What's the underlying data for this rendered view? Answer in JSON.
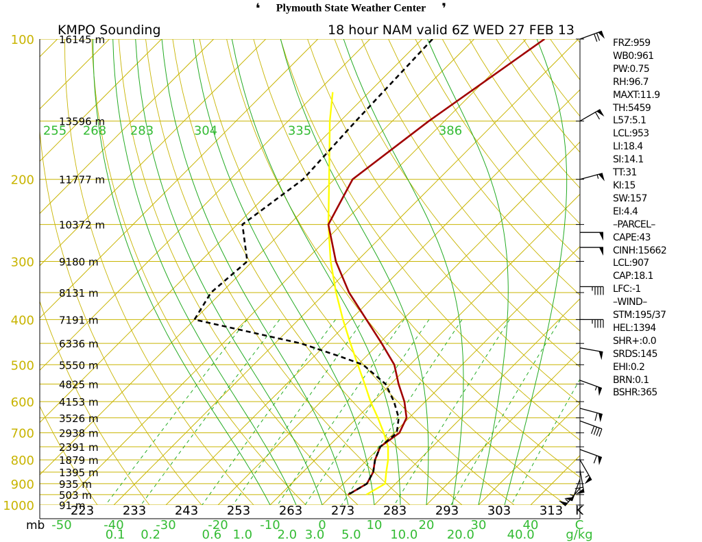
{
  "header": {
    "title": "Plymouth State Weather Center",
    "flag_left": "❛",
    "flag_right": "❜"
  },
  "indices": [
    "FRZ:959",
    "WB0:961",
    "PW:0.75",
    "RH:96.7",
    "MAXT:11.9",
    "TH:5459",
    "L57:5.1",
    "LCL:953",
    "LI:18.4",
    "SI:14.1",
    "TT:31",
    "KI:15",
    "SW:157",
    "EI:4.4",
    "–PARCEL–",
    "CAPE:43",
    "CINH:15662",
    "LCL:907",
    "CAP:18.1",
    "LFC:-1",
    "–WIND–",
    "STM:195/37",
    "HEL:1394",
    "SHR+:0.0",
    "SRDS:145",
    "EHI:0.2",
    "BRN:0.1",
    "BSHR:365"
  ],
  "colors": {
    "isobar": "#c8b400",
    "isotherm": "#c8b400",
    "dry_adiabat": "#c8b400",
    "moist_adiabat": "#22aa22",
    "mixing_ratio": "#22aa22",
    "temperature": "#a00000",
    "dewpoint": "#000000",
    "parcel": "#ffff00",
    "label_green": "#33bb33",
    "label_yellow": "#c8b400",
    "text": "#000000"
  },
  "chart_data": {
    "type": "line",
    "subtype": "skew-T log-P sounding",
    "title": "KMPO Sounding",
    "subtitle": "18 hour NAM valid 6Z WED 27 FEB 13",
    "ylabel": "mb",
    "y_scale": "log",
    "pressure_ticks": [
      100,
      200,
      300,
      400,
      500,
      600,
      700,
      800,
      900,
      1000
    ],
    "temperature_ticks": [
      -50,
      -40,
      -30,
      -20,
      -10,
      0,
      10,
      20,
      30,
      40
    ],
    "temperature_tick_labels": [
      "-50",
      "-40",
      "-30",
      "-20",
      "-10",
      "0",
      "10",
      "20",
      "30",
      "40"
    ],
    "temperature_axis_end_label": "C",
    "kelvin_labels": [
      "223",
      "233",
      "243",
      "253",
      "263",
      "273",
      "283",
      "293",
      "303",
      "313",
      "K"
    ],
    "mixing_ratio_labels": [
      {
        "w": 0.1,
        "label": "0.1"
      },
      {
        "w": 0.2,
        "label": "0.2"
      },
      {
        "w": 0.6,
        "label": "0.6"
      },
      {
        "w": 1.0,
        "label": "1.0"
      },
      {
        "w": 2.0,
        "label": "2.0"
      },
      {
        "w": 3.0,
        "label": "3.0"
      },
      {
        "w": 5.0,
        "label": "5.0"
      },
      {
        "w": 10.0,
        "label": "10.0"
      },
      {
        "w": 20.0,
        "label": "20.0"
      },
      {
        "w": 40.0,
        "label": "40.0"
      }
    ],
    "mixing_ratio_unit": "g/kg",
    "theta_e_labels": [
      "255",
      "268",
      "283",
      "304",
      "335",
      "386"
    ],
    "height_labels": [
      {
        "p": 100,
        "text": "16145 m"
      },
      {
        "p": 150,
        "text": "13596 m"
      },
      {
        "p": 200,
        "text": "11777 m"
      },
      {
        "p": 250,
        "text": "10372 m"
      },
      {
        "p": 300,
        "text": "9180 m"
      },
      {
        "p": 350,
        "text": "8131 m"
      },
      {
        "p": 400,
        "text": "7191 m"
      },
      {
        "p": 450,
        "text": "6336 m"
      },
      {
        "p": 500,
        "text": "5550 m"
      },
      {
        "p": 550,
        "text": "4825 m"
      },
      {
        "p": 600,
        "text": "4153 m"
      },
      {
        "p": 650,
        "text": "3526 m"
      },
      {
        "p": 700,
        "text": "2938 m"
      },
      {
        "p": 750,
        "text": "2391 m"
      },
      {
        "p": 800,
        "text": "1879 m"
      },
      {
        "p": 850,
        "text": "1395 m"
      },
      {
        "p": 900,
        "text": "935 m"
      },
      {
        "p": 950,
        "text": "503 m"
      },
      {
        "p": 1000,
        "text": "91 m"
      }
    ],
    "series": [
      {
        "key": "temperature",
        "points": [
          {
            "p": 100,
            "t": -46.5
          },
          {
            "p": 150,
            "t": -53
          },
          {
            "p": 200,
            "t": -56.5
          },
          {
            "p": 250,
            "t": -52.5
          },
          {
            "p": 300,
            "t": -44
          },
          {
            "p": 350,
            "t": -35.5
          },
          {
            "p": 400,
            "t": -27
          },
          {
            "p": 450,
            "t": -19.5
          },
          {
            "p": 500,
            "t": -13
          },
          {
            "p": 550,
            "t": -8.5
          },
          {
            "p": 600,
            "t": -4
          },
          {
            "p": 650,
            "t": -0.5
          },
          {
            "p": 700,
            "t": 1
          },
          {
            "p": 750,
            "t": 0
          },
          {
            "p": 800,
            "t": 1.5
          },
          {
            "p": 850,
            "t": 3.5
          },
          {
            "p": 900,
            "t": 4.5
          },
          {
            "p": 950,
            "t": 3
          }
        ]
      },
      {
        "key": "dewpoint",
        "points": [
          {
            "p": 100,
            "t": -68
          },
          {
            "p": 150,
            "t": -67
          },
          {
            "p": 200,
            "t": -66
          },
          {
            "p": 250,
            "t": -69
          },
          {
            "p": 300,
            "t": -61
          },
          {
            "p": 350,
            "t": -62
          },
          {
            "p": 400,
            "t": -60
          },
          {
            "p": 450,
            "t": -35
          },
          {
            "p": 480,
            "t": -25
          },
          {
            "p": 500,
            "t": -19
          },
          {
            "p": 550,
            "t": -11
          },
          {
            "p": 600,
            "t": -6
          },
          {
            "p": 650,
            "t": -2
          },
          {
            "p": 700,
            "t": 0.5
          },
          {
            "p": 750,
            "t": 0
          },
          {
            "p": 800,
            "t": 1.5
          },
          {
            "p": 850,
            "t": 3.5
          },
          {
            "p": 900,
            "t": 4.5
          },
          {
            "p": 950,
            "t": 3
          }
        ]
      },
      {
        "key": "parcel",
        "points": [
          {
            "p": 130,
            "t": -77
          },
          {
            "p": 150,
            "t": -72
          },
          {
            "p": 200,
            "t": -61
          },
          {
            "p": 250,
            "t": -52.5
          },
          {
            "p": 300,
            "t": -45
          },
          {
            "p": 350,
            "t": -38
          },
          {
            "p": 400,
            "t": -31.5
          },
          {
            "p": 450,
            "t": -25.5
          },
          {
            "p": 500,
            "t": -20
          },
          {
            "p": 550,
            "t": -15
          },
          {
            "p": 600,
            "t": -10.5
          },
          {
            "p": 650,
            "t": -6
          },
          {
            "p": 700,
            "t": -2
          },
          {
            "p": 750,
            "t": 1.5
          },
          {
            "p": 800,
            "t": 4
          },
          {
            "p": 850,
            "t": 6
          },
          {
            "p": 900,
            "t": 8
          },
          {
            "p": 950,
            "t": 6.5
          }
        ]
      }
    ],
    "wind_barbs": [
      {
        "p": 100,
        "dir": 290,
        "kt": 70
      },
      {
        "p": 150,
        "dir": 300,
        "kt": 60
      },
      {
        "p": 200,
        "dir": 285,
        "kt": 55
      },
      {
        "p": 260,
        "dir": 270,
        "kt": 50
      },
      {
        "p": 280,
        "dir": 270,
        "kt": 50
      },
      {
        "p": 340,
        "dir": 270,
        "kt": 45
      },
      {
        "p": 400,
        "dir": 270,
        "kt": 45
      },
      {
        "p": 460,
        "dir": 260,
        "kt": 50
      },
      {
        "p": 540,
        "dir": 250,
        "kt": 55
      },
      {
        "p": 620,
        "dir": 255,
        "kt": 60
      },
      {
        "p": 660,
        "dir": 250,
        "kt": 40
      },
      {
        "p": 760,
        "dir": 250,
        "kt": 60
      },
      {
        "p": 800,
        "dir": 210,
        "kt": 55
      },
      {
        "p": 840,
        "dir": 190,
        "kt": 60
      },
      {
        "p": 880,
        "dir": 160,
        "kt": 55
      },
      {
        "p": 920,
        "dir": 140,
        "kt": 55
      }
    ]
  }
}
